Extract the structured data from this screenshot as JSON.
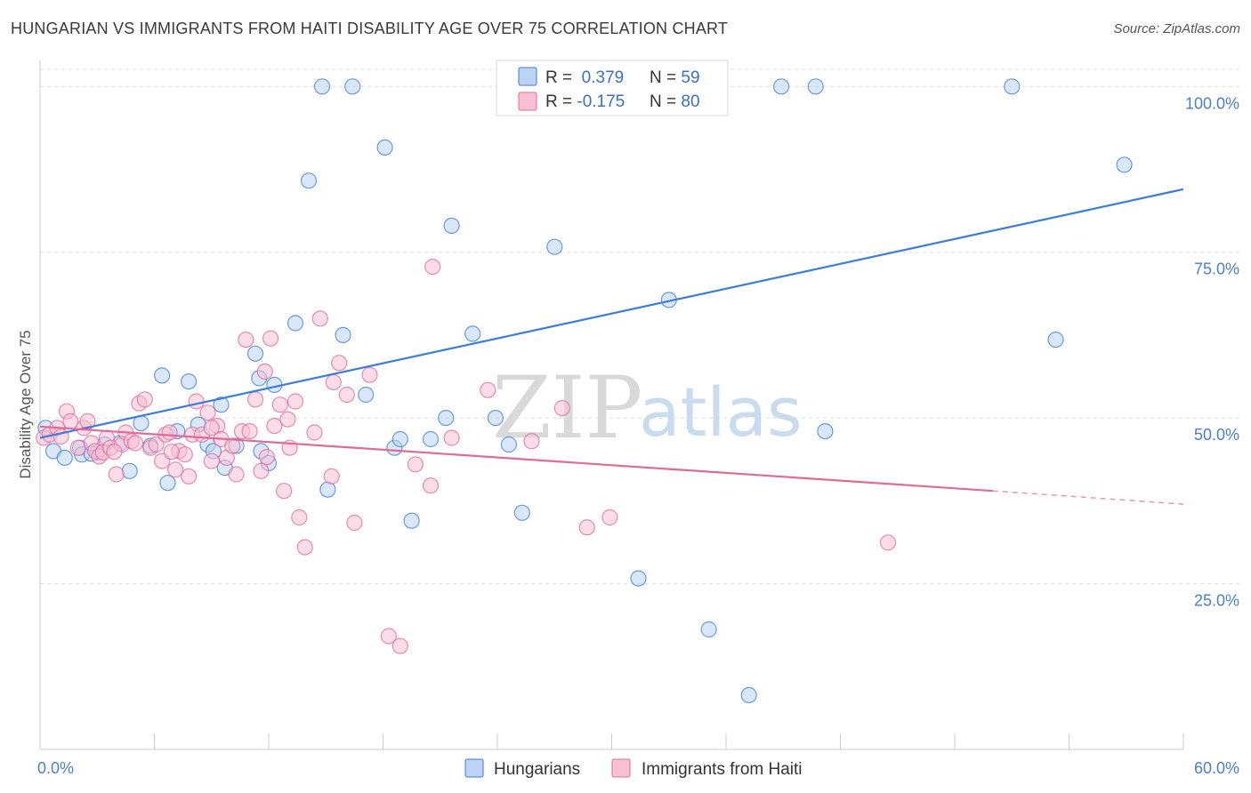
{
  "header": {
    "title": "HUNGARIAN VS IMMIGRANTS FROM HAITI DISABILITY AGE OVER 75 CORRELATION CHART",
    "source": "Source: ZipAtlas.com"
  },
  "watermark": {
    "zip": "ZIP",
    "atlas": "atlas"
  },
  "colors": {
    "blue": "#3b7dd8",
    "blue_fill": "#bcd3f3",
    "pink": "#e06a98",
    "pink_fill": "#f7c0d3",
    "grid": "#dddddd"
  },
  "legend": {
    "rows": [
      {
        "r_label": "R = ",
        "r_value": " 0.379",
        "n_label": "N = ",
        "n_value": "59"
      },
      {
        "r_label": "R = ",
        "r_value": "-0.175",
        "n_label": "N = ",
        "n_value": "80"
      }
    ]
  },
  "bottom_legend": [
    "Hungarians",
    "Immigrants from Haiti"
  ],
  "chart_data": {
    "type": "scatter",
    "title": "HUNGARIAN VS IMMIGRANTS FROM HAITI DISABILITY AGE OVER 75 CORRELATION CHART",
    "ylabel": "Disability Age Over 75",
    "xlim": [
      0,
      60
    ],
    "ylim": [
      0,
      105
    ],
    "x_tick_labels": [
      "0.0%",
      "60.0%"
    ],
    "y_ticks": [
      25,
      50,
      75,
      100
    ],
    "y_tick_labels": [
      "25.0%",
      "50.0%",
      "75.0%",
      "100.0%"
    ],
    "grid": true,
    "legend_position": "top-center",
    "series": [
      {
        "name": "Hungarians",
        "R": 0.379,
        "N": 59,
        "trend": {
          "x": [
            0,
            60
          ],
          "y": [
            47,
            84.5
          ]
        },
        "points": [
          [
            0.3,
            48.5
          ],
          [
            0.7,
            45
          ],
          [
            1.3,
            44
          ],
          [
            2.1,
            45.5
          ],
          [
            2.2,
            44.5
          ],
          [
            3.0,
            44.8
          ],
          [
            3.4,
            46
          ],
          [
            4.2,
            46.2
          ],
          [
            4.7,
            42
          ],
          [
            5.3,
            49.2
          ],
          [
            5.8,
            45.8
          ],
          [
            6.4,
            56.4
          ],
          [
            6.7,
            40.2
          ],
          [
            7.2,
            48
          ],
          [
            7.8,
            55.5
          ],
          [
            8.3,
            49
          ],
          [
            8.8,
            46
          ],
          [
            9.1,
            45
          ],
          [
            9.5,
            52
          ],
          [
            9.7,
            42.5
          ],
          [
            11.3,
            59.7
          ],
          [
            11.5,
            56
          ],
          [
            11.6,
            45
          ],
          [
            12.0,
            43.2
          ],
          [
            12.3,
            55
          ],
          [
            13.4,
            64.3
          ],
          [
            14.1,
            85.8
          ],
          [
            14.8,
            100
          ],
          [
            15.1,
            39.2
          ],
          [
            16.4,
            100
          ],
          [
            15.9,
            62.5
          ],
          [
            17.1,
            53.5
          ],
          [
            18.1,
            90.8
          ],
          [
            18.6,
            45.5
          ],
          [
            18.9,
            46.8
          ],
          [
            19.5,
            34.5
          ],
          [
            20.5,
            46.8
          ],
          [
            21.3,
            50
          ],
          [
            21.6,
            79
          ],
          [
            22.7,
            62.7
          ],
          [
            23.9,
            50
          ],
          [
            24.6,
            46
          ],
          [
            25.3,
            35.7
          ],
          [
            26.2,
            98
          ],
          [
            27.0,
            75.8
          ],
          [
            28.2,
            100
          ],
          [
            29.0,
            100
          ],
          [
            31.4,
            25.8
          ],
          [
            33.0,
            67.8
          ],
          [
            35.1,
            18.1
          ],
          [
            37.2,
            8.2
          ],
          [
            38.9,
            100
          ],
          [
            40.7,
            100
          ],
          [
            41.2,
            48
          ],
          [
            51.0,
            100
          ],
          [
            53.3,
            61.8
          ],
          [
            56.9,
            88.2
          ],
          [
            2.7,
            44.6
          ],
          [
            10.3,
            45.8
          ]
        ]
      },
      {
        "name": "Immigrants from Haiti",
        "R": -0.175,
        "N": 80,
        "trend": {
          "x": [
            0,
            50
          ],
          "y": [
            48.7,
            39
          ]
        },
        "trend_dashed": {
          "x": [
            50,
            60
          ],
          "y": [
            39,
            37
          ]
        },
        "points": [
          [
            0.2,
            47
          ],
          [
            0.5,
            47.5
          ],
          [
            0.9,
            48.5
          ],
          [
            1.1,
            47.2
          ],
          [
            1.4,
            51
          ],
          [
            1.6,
            49.5
          ],
          [
            2.0,
            45.5
          ],
          [
            2.3,
            48.5
          ],
          [
            2.5,
            49.5
          ],
          [
            2.7,
            46.2
          ],
          [
            2.9,
            45
          ],
          [
            3.1,
            44.2
          ],
          [
            3.3,
            44.8
          ],
          [
            3.5,
            47
          ],
          [
            3.7,
            45.5
          ],
          [
            4.0,
            41.5
          ],
          [
            4.3,
            46
          ],
          [
            4.5,
            47.8
          ],
          [
            4.8,
            46.5
          ],
          [
            5.0,
            46.2
          ],
          [
            5.2,
            52.2
          ],
          [
            5.5,
            52.8
          ],
          [
            5.8,
            45.5
          ],
          [
            6.1,
            46
          ],
          [
            6.4,
            43.5
          ],
          [
            6.6,
            47.5
          ],
          [
            6.8,
            47.8
          ],
          [
            7.1,
            42.2
          ],
          [
            7.3,
            45
          ],
          [
            7.6,
            44.5
          ],
          [
            7.8,
            41.2
          ],
          [
            8.0,
            47.5
          ],
          [
            8.2,
            52.5
          ],
          [
            8.5,
            47.5
          ],
          [
            8.8,
            50.8
          ],
          [
            9.0,
            43.5
          ],
          [
            9.3,
            48.8
          ],
          [
            9.5,
            46.8
          ],
          [
            9.8,
            44
          ],
          [
            10.1,
            45.8
          ],
          [
            10.3,
            41.5
          ],
          [
            10.6,
            48
          ],
          [
            10.8,
            61.8
          ],
          [
            11.0,
            48
          ],
          [
            11.3,
            52.8
          ],
          [
            11.6,
            42
          ],
          [
            11.8,
            57
          ],
          [
            12.1,
            62
          ],
          [
            12.3,
            48.8
          ],
          [
            12.6,
            52
          ],
          [
            12.8,
            39
          ],
          [
            13.1,
            45.5
          ],
          [
            13.4,
            52.5
          ],
          [
            13.6,
            35
          ],
          [
            13.9,
            30.5
          ],
          [
            14.4,
            47.8
          ],
          [
            14.7,
            65
          ],
          [
            15.3,
            41.2
          ],
          [
            15.7,
            58.3
          ],
          [
            16.1,
            53.5
          ],
          [
            16.5,
            34.2
          ],
          [
            17.3,
            56.5
          ],
          [
            18.3,
            17.1
          ],
          [
            18.9,
            15.6
          ],
          [
            19.7,
            43
          ],
          [
            20.5,
            39.8
          ],
          [
            20.6,
            72.8
          ],
          [
            21.6,
            47
          ],
          [
            23.5,
            54.2
          ],
          [
            25.8,
            46.5
          ],
          [
            27.4,
            51.5
          ],
          [
            28.7,
            33.5
          ],
          [
            29.9,
            35
          ],
          [
            44.5,
            31.2
          ],
          [
            3.9,
            44.9
          ],
          [
            6.9,
            44.9
          ],
          [
            9.0,
            48.5
          ],
          [
            11.9,
            44.1
          ],
          [
            13.0,
            49.8
          ],
          [
            15.4,
            55.4
          ]
        ]
      }
    ]
  }
}
